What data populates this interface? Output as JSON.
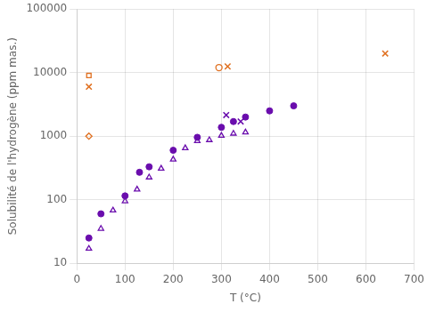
{
  "chart_data": {
    "type": "scatter",
    "xlabel": "T (°C)",
    "ylabel": "Solubilité de l'hydrogène (ppm mas.)",
    "log": "y",
    "grid": true,
    "xlim": [
      0,
      700
    ],
    "ylim": [
      10,
      100000
    ],
    "xticks": [
      0,
      100,
      200,
      300,
      400,
      500,
      600,
      700
    ],
    "yticks": [
      10,
      100,
      1000,
      10000,
      100000
    ],
    "series": [
      {
        "color": "#6A0DAD",
        "marker": "circle",
        "x": [
          25,
          50,
          100,
          130,
          150,
          200,
          250,
          300,
          325,
          350,
          400,
          450
        ],
        "values": [
          25,
          60,
          115,
          270,
          330,
          600,
          960,
          1380,
          1700,
          2000,
          2500,
          3000
        ]
      },
      {
        "color": "#6A0DAD",
        "marker": "triangle-open",
        "x": [
          25,
          50,
          75,
          100,
          125,
          150,
          175,
          200,
          225,
          250,
          275,
          300,
          325,
          350
        ],
        "values": [
          17,
          35,
          68,
          95,
          145,
          225,
          310,
          430,
          650,
          840,
          870,
          1020,
          1100,
          1150
        ]
      },
      {
        "color": "#6A0DAD",
        "marker": "cross",
        "x": [
          310,
          340
        ],
        "values": [
          2150,
          1700
        ]
      },
      {
        "color": "#E07020",
        "marker": "square-open",
        "x": [
          25
        ],
        "values": [
          9000
        ]
      },
      {
        "color": "#E07020",
        "marker": "cross",
        "x": [
          25
        ],
        "values": [
          6000
        ]
      },
      {
        "color": "#E07020",
        "marker": "diamond-open",
        "x": [
          25
        ],
        "values": [
          1000
        ]
      },
      {
        "color": "#E07020",
        "marker": "circle-open",
        "x": [
          295
        ],
        "values": [
          12000
        ]
      },
      {
        "color": "#E07020",
        "marker": "cross",
        "x": [
          313
        ],
        "values": [
          12500
        ]
      },
      {
        "color": "#E07020",
        "marker": "cross",
        "x": [
          640
        ],
        "values": [
          20000
        ]
      }
    ]
  }
}
